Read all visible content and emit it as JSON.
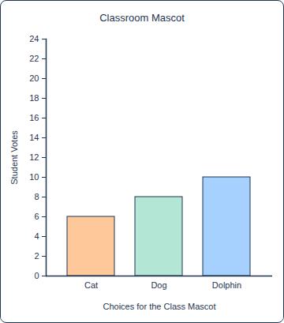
{
  "chart_data": {
    "type": "bar",
    "title": "Classroom Mascot",
    "x_label": "Choices for the Class Mascot",
    "y_label": "Student Votes",
    "categories": [
      "Cat",
      "Dog",
      "Dolphin"
    ],
    "values": [
      6,
      8,
      10
    ],
    "colors": [
      "#ffc89b",
      "#b3e6d5",
      "#a6d0fd"
    ],
    "ylim": [
      0,
      24
    ],
    "yticks": [
      0,
      2,
      4,
      6,
      8,
      10,
      12,
      14,
      16,
      18,
      20,
      22,
      24
    ],
    "grid": false
  }
}
